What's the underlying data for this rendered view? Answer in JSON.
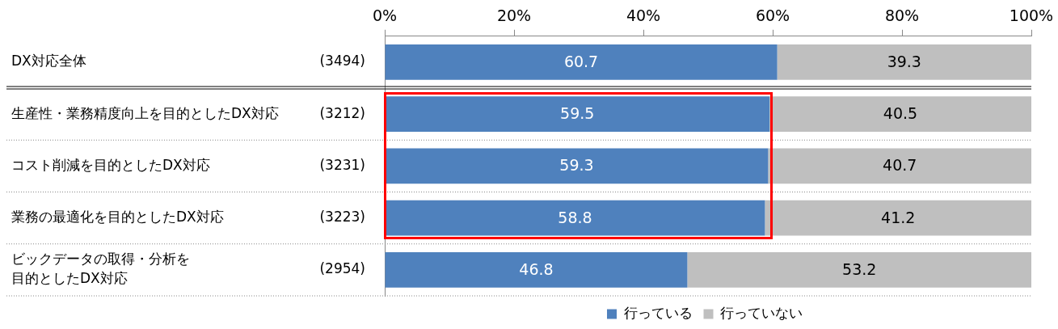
{
  "chart_data": {
    "type": "bar",
    "orientation": "horizontal",
    "stacked": true,
    "categories": [
      "DX対応全体",
      "生産性・業務精度向上を目的としたDX対応",
      "コスト削減を目的としたDX対応",
      "業務の最適化を目的としたDX対応",
      "ビックデータの取得・分析を目的としたDX対応"
    ],
    "series": [
      {
        "name": "行っている",
        "color": "#4f81bd",
        "values": [
          60.7,
          59.5,
          59.3,
          58.8,
          46.8
        ]
      },
      {
        "name": "行っていない",
        "color": "#bfbfbf",
        "values": [
          39.3,
          40.5,
          40.7,
          41.2,
          53.2
        ]
      }
    ],
    "xlim": [
      0,
      100
    ],
    "xticks": [
      {
        "value": 0,
        "label": "0%"
      },
      {
        "value": 20,
        "label": "20%"
      },
      {
        "value": 40,
        "label": "40%"
      },
      {
        "value": 60,
        "label": "60%"
      },
      {
        "value": 80,
        "label": "80%"
      },
      {
        "value": 100,
        "label": "100%"
      }
    ],
    "annotations": [
      "(3494)",
      "(3212)",
      "(3231)",
      "(3223)",
      "(2954)"
    ],
    "data_labels": true,
    "grid": false,
    "legend": "bottom"
  }
}
